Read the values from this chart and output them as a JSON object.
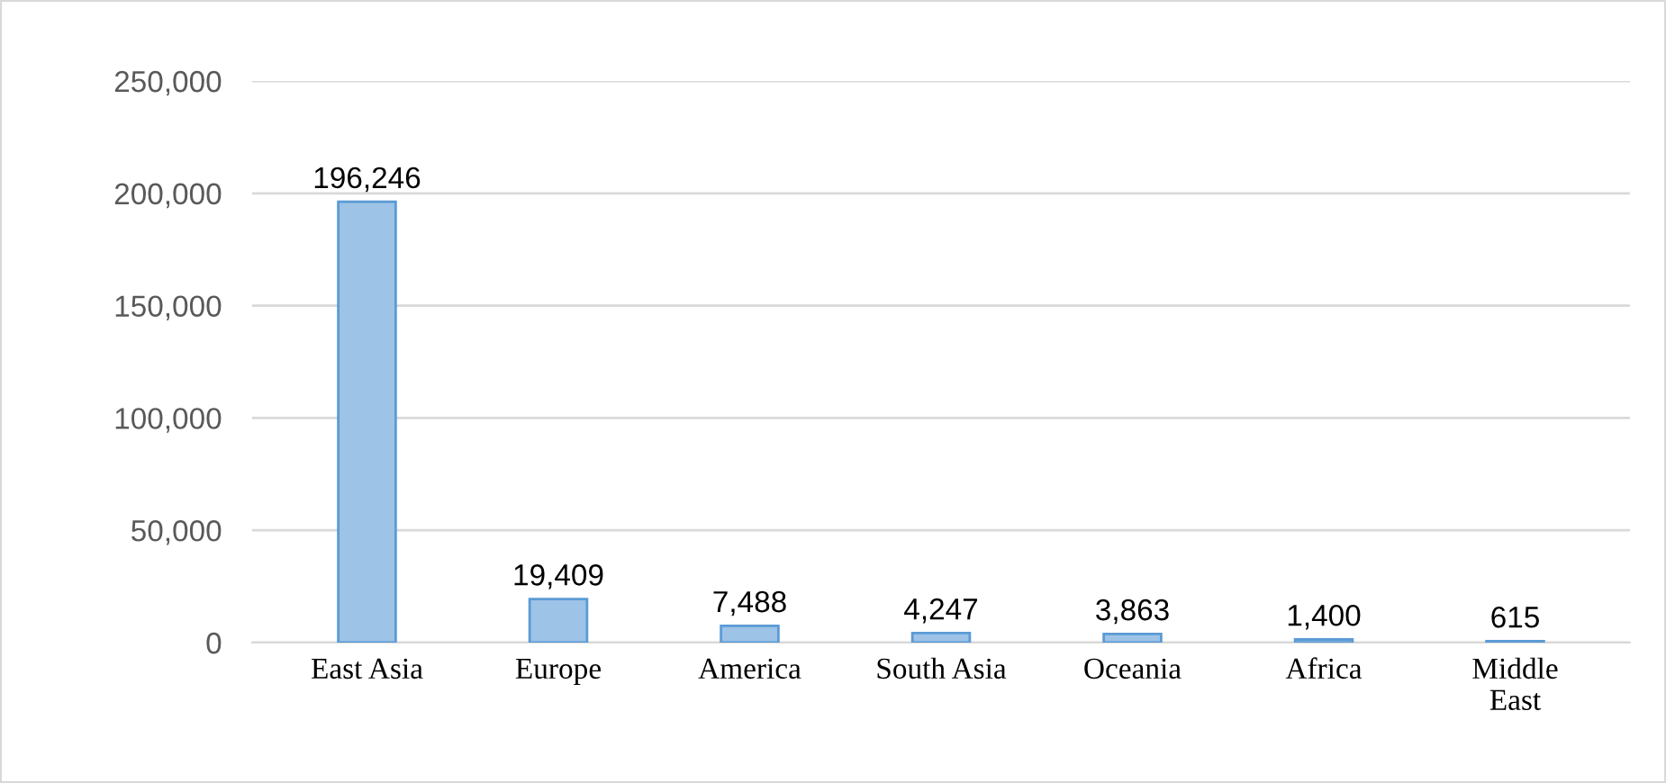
{
  "chart_data": {
    "type": "bar",
    "categories": [
      "East Asia",
      "Europe",
      "America",
      "South Asia",
      "Oceania",
      "Africa",
      "Middle\nEast"
    ],
    "values": [
      196246,
      19409,
      7488,
      4247,
      3863,
      1400,
      615
    ],
    "value_labels": [
      "196,246",
      "19,409",
      "7,488",
      "4,247",
      "3,863",
      "1,400",
      "615"
    ],
    "color": "#9dc3e6",
    "ylim": [
      0,
      250000
    ],
    "yticks": [
      {
        "value": 0,
        "label": "0"
      },
      {
        "value": 50000,
        "label": "50,000"
      },
      {
        "value": 100000,
        "label": "100,000"
      },
      {
        "value": 150000,
        "label": "150,000"
      },
      {
        "value": 200000,
        "label": "200,000"
      },
      {
        "value": 250000,
        "label": "250,000"
      }
    ],
    "grid": "y"
  }
}
